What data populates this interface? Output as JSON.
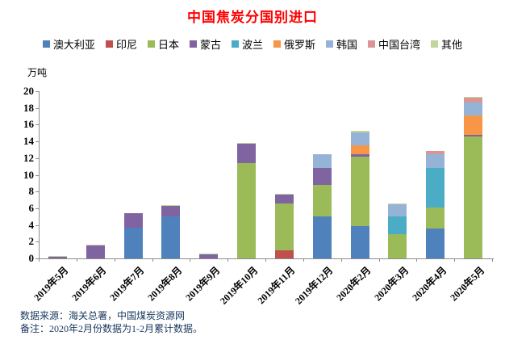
{
  "title": "中国焦炭分国别进口",
  "unit_label": "万吨",
  "footer": {
    "source": "数据来源：海关总署，中国煤炭资源网",
    "note": "备注：2020年2月份数据为1-2月累计数据。"
  },
  "colors": {
    "title": "#ff0000",
    "footer": "#17375e",
    "axis": "#8c8c8c",
    "text": "#000000"
  },
  "chart_data": {
    "type": "bar",
    "stacked": true,
    "title": "中国焦炭分国别进口",
    "ylabel": "万吨",
    "xlabel": "",
    "ylim": [
      0,
      20
    ],
    "ytick_step": 2,
    "grid": false,
    "legend_position": "top",
    "categories": [
      "2019年5月",
      "2019年6月",
      "2019年7月",
      "2019年8月",
      "2019年9月",
      "2019年10月",
      "2019年11月",
      "2019年12月",
      "2020年2月",
      "2020年3月",
      "2020年4月",
      "2020年5月"
    ],
    "series": [
      {
        "name": "澳大利亚",
        "color": "#4f81bd",
        "values": [
          0,
          0,
          3.7,
          5.0,
          0,
          0,
          0,
          5.0,
          3.9,
          0,
          3.6,
          0
        ]
      },
      {
        "name": "印尼",
        "color": "#c0504d",
        "values": [
          0,
          0,
          0,
          0,
          0,
          0,
          1.0,
          0,
          0,
          0,
          0,
          0
        ]
      },
      {
        "name": "日本",
        "color": "#9bbb59",
        "values": [
          0,
          0,
          0,
          0,
          0,
          11.4,
          5.6,
          3.8,
          8.3,
          2.9,
          2.5,
          14.6
        ]
      },
      {
        "name": "蒙古",
        "color": "#8064a2",
        "values": [
          0.2,
          1.5,
          1.7,
          1.3,
          0.5,
          2.3,
          1.0,
          2.0,
          0.3,
          0,
          0,
          0.2
        ]
      },
      {
        "name": "波兰",
        "color": "#4bacc6",
        "values": [
          0,
          0,
          0,
          0,
          0,
          0,
          0,
          0,
          0,
          2.1,
          4.7,
          0
        ]
      },
      {
        "name": "俄罗斯",
        "color": "#f79646",
        "values": [
          0,
          0,
          0,
          0,
          0,
          0,
          0,
          0,
          1.0,
          0,
          0,
          2.3
        ]
      },
      {
        "name": "韩国",
        "color": "#95b3d7",
        "values": [
          0,
          0,
          0,
          0,
          0,
          0,
          0,
          1.7,
          1.6,
          1.45,
          1.7,
          1.5
        ]
      },
      {
        "name": "中国台湾",
        "color": "#d99694",
        "values": [
          0,
          0,
          0,
          0,
          0,
          0,
          0,
          0,
          0,
          0,
          0.35,
          0.6
        ]
      },
      {
        "name": "其他",
        "color": "#c3d69b",
        "values": [
          0.1,
          0.1,
          0,
          0.1,
          0.05,
          0.1,
          0.1,
          0,
          0.2,
          0.1,
          0,
          0.15
        ]
      }
    ]
  }
}
